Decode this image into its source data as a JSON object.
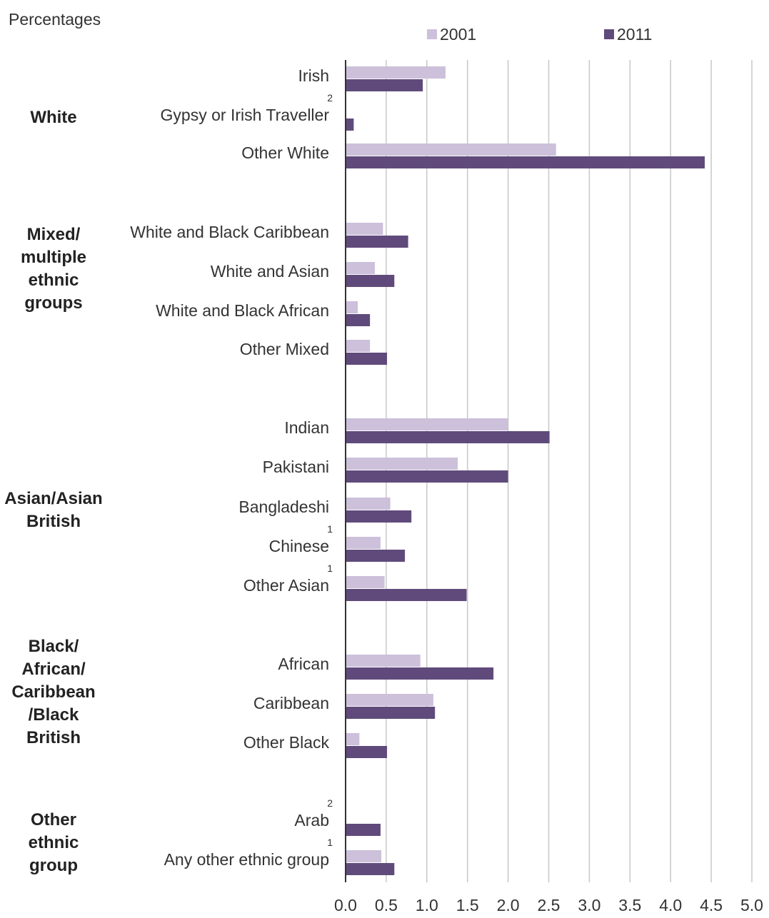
{
  "chart_data": {
    "type": "bar",
    "orientation": "horizontal",
    "ylabel": "Percentages",
    "xlim": [
      0,
      5
    ],
    "xticks": [
      "0.0",
      "0.5",
      "1.0",
      "1.5",
      "2.0",
      "2.5",
      "3.0",
      "3.5",
      "4.0",
      "4.5",
      "5.0"
    ],
    "grid": true,
    "legend_position": "top",
    "colors": {
      "2001": "#ccc0da",
      "2011": "#604a7b"
    },
    "series": [
      {
        "name": "2001",
        "color": "#ccc0da"
      },
      {
        "name": "2011",
        "color": "#604a7b"
      }
    ],
    "groups": [
      {
        "name": "White",
        "name_lines": [
          "White"
        ],
        "categories": [
          {
            "label": "Irish",
            "note": "",
            "values": [
              1.23,
              0.95
            ]
          },
          {
            "label": "Gypsy or Irish Traveller",
            "note": "2",
            "values": [
              null,
              0.1
            ]
          },
          {
            "label": "Other White",
            "note": "",
            "values": [
              2.59,
              4.42
            ]
          }
        ]
      },
      {
        "name": "Mixed/ multiple ethnic groups",
        "name_lines": [
          "Mixed/",
          "multiple",
          "ethnic",
          "groups"
        ],
        "categories": [
          {
            "label": "White and Black Caribbean",
            "note": "",
            "values": [
              0.46,
              0.77
            ]
          },
          {
            "label": "White and Asian",
            "note": "",
            "values": [
              0.36,
              0.6
            ]
          },
          {
            "label": "White and Black African",
            "note": "",
            "values": [
              0.15,
              0.3
            ]
          },
          {
            "label": "Other Mixed",
            "note": "",
            "values": [
              0.3,
              0.51
            ]
          }
        ]
      },
      {
        "name": "Asian/Asian British",
        "name_lines": [
          "Asian/Asian",
          "British"
        ],
        "categories": [
          {
            "label": "Indian",
            "note": "",
            "values": [
              2.0,
              2.51
            ]
          },
          {
            "label": "Pakistani",
            "note": "",
            "values": [
              1.38,
              2.0
            ]
          },
          {
            "label": "Bangladeshi",
            "note": "",
            "values": [
              0.55,
              0.81
            ]
          },
          {
            "label": "Chinese",
            "note": "1",
            "values": [
              0.43,
              0.73
            ]
          },
          {
            "label": "Other Asian",
            "note": "1",
            "values": [
              0.48,
              1.49
            ]
          }
        ]
      },
      {
        "name": "Black/ African/ Caribbean /Black British",
        "name_lines": [
          "Black/",
          "African/",
          "Caribbean",
          "/Black",
          "British"
        ],
        "categories": [
          {
            "label": "African",
            "note": "",
            "values": [
              0.92,
              1.82
            ]
          },
          {
            "label": "Caribbean",
            "note": "",
            "values": [
              1.08,
              1.1
            ]
          },
          {
            "label": "Other Black",
            "note": "",
            "values": [
              0.17,
              0.51
            ]
          }
        ]
      },
      {
        "name": "Other ethnic group",
        "name_lines": [
          "Other",
          "ethnic",
          "group"
        ],
        "categories": [
          {
            "label": "Arab",
            "note": "2",
            "values": [
              null,
              0.43
            ]
          },
          {
            "label": "Any other ethnic group",
            "note": "1",
            "values": [
              0.44,
              0.6
            ]
          }
        ]
      }
    ]
  }
}
